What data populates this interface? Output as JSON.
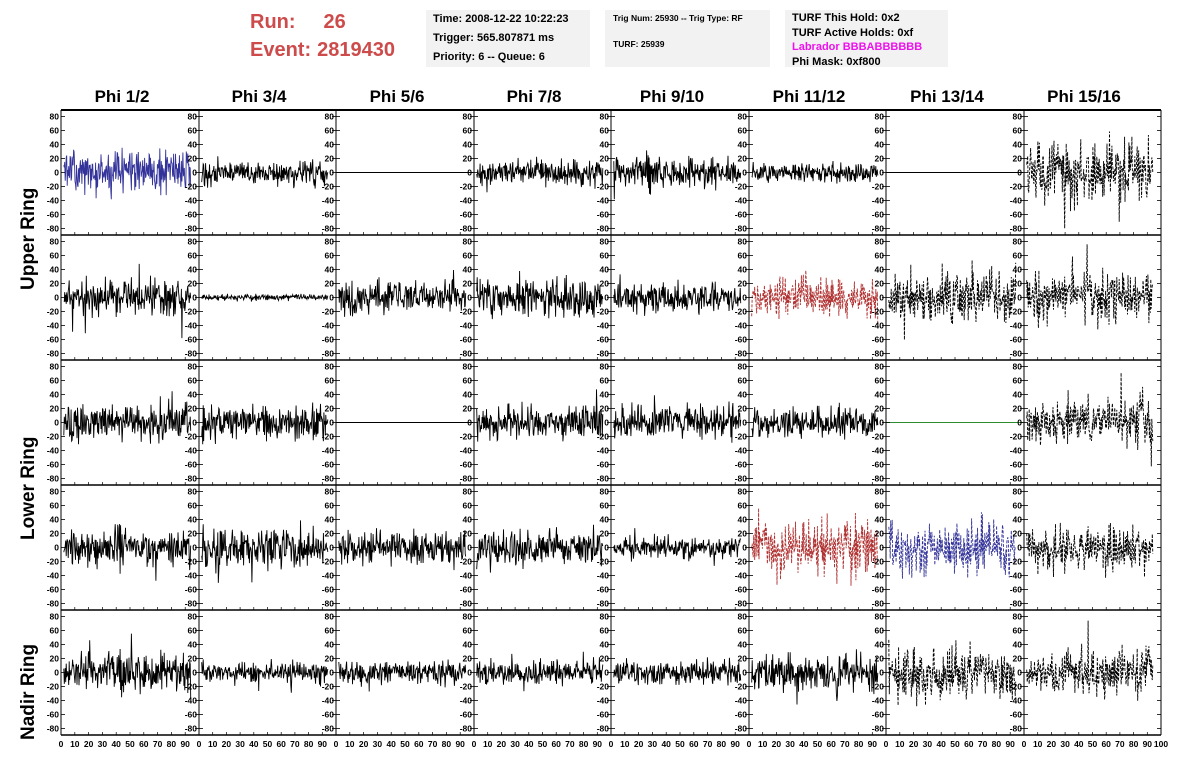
{
  "header": {
    "run_label": "Run:",
    "run_value": "26",
    "event_label": "Event:",
    "event_value": "2819430",
    "time_line": "Time: 2008-12-22 10:22:23",
    "trigger_line": "Trigger: 565.807871 ms",
    "priority_line": "Priority: 6 -- Queue: 6",
    "trig_num_line": "Trig Num: 25930 -- Trig Type: RF",
    "turf_line": "TURF: 25939",
    "turf_this_hold": "TURF This Hold: 0x2",
    "turf_active_holds": "TURF Active Holds: 0xf",
    "labrador_line": "Labrador BBBABBBBBB",
    "phi_mask": "Phi Mask: 0xf800"
  },
  "columns": [
    "Phi 1/2",
    "Phi 3/4",
    "Phi 5/6",
    "Phi 7/8",
    "Phi 9/10",
    "Phi 11/12",
    "Phi 13/14",
    "Phi 15/16"
  ],
  "row_labels": [
    "Upper Ring",
    "Lower Ring",
    "Nadir Ring"
  ],
  "colors": {
    "blue": "#33339a",
    "red": "#b03030",
    "green": "#2e8b2e",
    "black": "#000000",
    "labrador_magenta": "#ee11ee",
    "run_red": "#cd4b4b"
  },
  "chart_data": {
    "type": "line",
    "description_rows": 5,
    "xlim": [
      0,
      100
    ],
    "ylim": [
      -85,
      85
    ],
    "y_ticks": [
      -80,
      -60,
      -40,
      -20,
      0,
      20,
      40,
      60,
      80
    ],
    "x_tick_labels": [
      "0",
      "10",
      "20",
      "30",
      "40",
      "50",
      "60",
      "70",
      "80",
      "90",
      "100"
    ],
    "panels": [
      [
        {
          "color": "blue",
          "style": "solid",
          "amp": 22,
          "seed": 1,
          "flat": false
        },
        {
          "color": "black",
          "style": "solid",
          "amp": 12,
          "seed": 2,
          "flat": false
        },
        {
          "color": "black",
          "style": "solid",
          "amp": 0,
          "seed": 3,
          "flat": true
        },
        {
          "color": "black",
          "style": "solid",
          "amp": 13,
          "seed": 4,
          "flat": false
        },
        {
          "color": "black",
          "style": "solid",
          "amp": 16,
          "seed": 5,
          "flat": false
        },
        {
          "color": "black",
          "style": "solid",
          "amp": 9,
          "seed": 6,
          "flat": false
        },
        {
          "color": "black",
          "style": "solid",
          "amp": 0,
          "seed": 7,
          "flat": true
        },
        {
          "color": "black",
          "style": "dashed",
          "amp": 30,
          "seed": 8,
          "flat": false
        }
      ],
      [
        {
          "color": "black",
          "style": "solid",
          "amp": 18,
          "seed": 11,
          "flat": false
        },
        {
          "color": "black",
          "style": "solid",
          "amp": 3,
          "seed": 12,
          "flat": false
        },
        {
          "color": "black",
          "style": "solid",
          "amp": 17,
          "seed": 13,
          "flat": false
        },
        {
          "color": "black",
          "style": "solid",
          "amp": 18,
          "seed": 14,
          "flat": false
        },
        {
          "color": "black",
          "style": "solid",
          "amp": 14,
          "seed": 15,
          "flat": false
        },
        {
          "color": "red",
          "style": "dashed",
          "amp": 20,
          "seed": 16,
          "flat": false
        },
        {
          "color": "black",
          "style": "dashed",
          "amp": 22,
          "seed": 17,
          "flat": false
        },
        {
          "color": "black",
          "style": "dashed",
          "amp": 24,
          "seed": 18,
          "flat": false
        }
      ],
      [
        {
          "color": "black",
          "style": "solid",
          "amp": 18,
          "seed": 21,
          "flat": false
        },
        {
          "color": "black",
          "style": "solid",
          "amp": 17,
          "seed": 22,
          "flat": false
        },
        {
          "color": "black",
          "style": "solid",
          "amp": 0,
          "seed": 23,
          "flat": true
        },
        {
          "color": "black",
          "style": "solid",
          "amp": 17,
          "seed": 24,
          "flat": false
        },
        {
          "color": "black",
          "style": "solid",
          "amp": 16,
          "seed": 25,
          "flat": false
        },
        {
          "color": "black",
          "style": "solid",
          "amp": 15,
          "seed": 26,
          "flat": false
        },
        {
          "color": "green",
          "style": "solid",
          "amp": 0,
          "seed": 27,
          "flat": true
        },
        {
          "color": "black",
          "style": "dashed",
          "amp": 22,
          "seed": 28,
          "flat": false
        }
      ],
      [
        {
          "color": "black",
          "style": "solid",
          "amp": 18,
          "seed": 31,
          "flat": false
        },
        {
          "color": "black",
          "style": "solid",
          "amp": 20,
          "seed": 32,
          "flat": false
        },
        {
          "color": "black",
          "style": "solid",
          "amp": 16,
          "seed": 33,
          "flat": false
        },
        {
          "color": "black",
          "style": "solid",
          "amp": 17,
          "seed": 34,
          "flat": false
        },
        {
          "color": "black",
          "style": "solid",
          "amp": 11,
          "seed": 35,
          "flat": false
        },
        {
          "color": "red",
          "style": "dashed",
          "amp": 28,
          "seed": 36,
          "flat": false
        },
        {
          "color": "blue",
          "style": "dashed",
          "amp": 26,
          "seed": 37,
          "flat": false
        },
        {
          "color": "black",
          "style": "dashed",
          "amp": 22,
          "seed": 38,
          "flat": false
        }
      ],
      [
        {
          "color": "black",
          "style": "solid",
          "amp": 20,
          "seed": 41,
          "flat": false
        },
        {
          "color": "black",
          "style": "solid",
          "amp": 10,
          "seed": 42,
          "flat": false
        },
        {
          "color": "black",
          "style": "solid",
          "amp": 12,
          "seed": 43,
          "flat": false
        },
        {
          "color": "black",
          "style": "solid",
          "amp": 12,
          "seed": 44,
          "flat": false
        },
        {
          "color": "black",
          "style": "solid",
          "amp": 12,
          "seed": 45,
          "flat": false
        },
        {
          "color": "black",
          "style": "solid",
          "amp": 18,
          "seed": 46,
          "flat": false
        },
        {
          "color": "black",
          "style": "dashed",
          "amp": 26,
          "seed": 47,
          "flat": false
        },
        {
          "color": "black",
          "style": "dashed",
          "amp": 24,
          "seed": 48,
          "flat": false
        }
      ]
    ]
  }
}
